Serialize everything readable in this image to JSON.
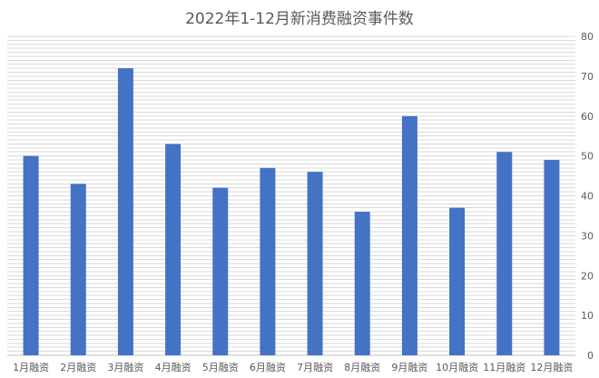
{
  "chart_data": {
    "type": "bar",
    "title": "2022年1-12月新消费融资事件数",
    "categories": [
      "1月融资",
      "2月融资",
      "3月融资",
      "4月融资",
      "5月融资",
      "6月融资",
      "7月融资",
      "8月融资",
      "9月融资",
      "10月融资",
      "11月融资",
      "12月融资"
    ],
    "values": [
      50,
      43,
      72,
      53,
      42,
      47,
      46,
      36,
      60,
      37,
      51,
      49
    ],
    "ylim": [
      0,
      80
    ],
    "yticks": [
      0,
      10,
      20,
      30,
      40,
      50,
      60,
      70,
      80
    ],
    "y_axis_position": "right",
    "bar_color": "#4472C4",
    "grid": true,
    "grid_color": "#d9d9d9",
    "legend": "none"
  }
}
